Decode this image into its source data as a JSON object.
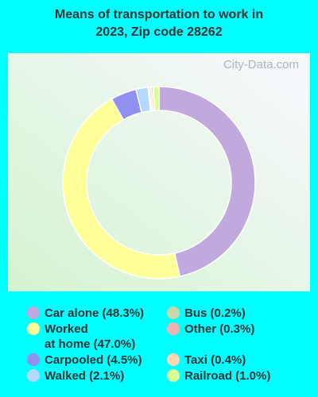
{
  "watermark": "City-Data.com",
  "chart_data": {
    "type": "donut",
    "title": "Means of transportation to work in\n2023, Zip code 28262",
    "categories": [
      "Car alone (48.3%)",
      "Worked\nat home (47.0%)",
      "Carpooled (4.5%)",
      "Walked (2.1%)",
      "Bus (0.2%)",
      "Other (0.3%)",
      "Taxi (0.4%)",
      "Railroad (1.0%)"
    ],
    "values": [
      48.3,
      47.0,
      4.5,
      2.1,
      0.2,
      0.3,
      0.4,
      1.0
    ],
    "colors": [
      "#c0a9dc",
      "#ffff9a",
      "#9090f0",
      "#b3d9ff",
      "#c9d8ab",
      "#f2b2b2",
      "#ffd7b0",
      "#dbff95"
    ]
  }
}
